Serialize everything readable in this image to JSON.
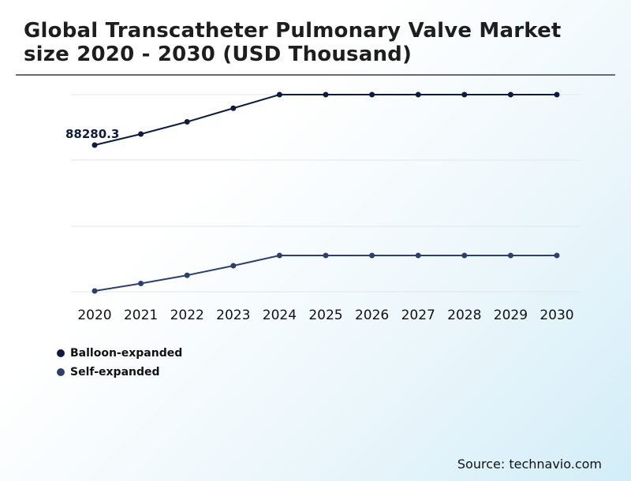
{
  "title": "Global Transcatheter Pulmonary Valve Market size 2020 - 2030 (USD Thousand)",
  "source": "Source: technavio.com",
  "colors": {
    "balloon": "#0d1b3e",
    "self": "#2d3f6b",
    "grid": "#e3e6ea"
  },
  "chart_data": {
    "type": "line",
    "title": "Global Transcatheter Pulmonary Valve Market size 2020 - 2030 (USD Thousand)",
    "categories": [
      "2020",
      "2021",
      "2022",
      "2023",
      "2024",
      "2025",
      "2026",
      "2027",
      "2028",
      "2029",
      "2030"
    ],
    "series": [
      {
        "name": "Balloon-expanded",
        "color_key": "balloon",
        "values": [
          88280.3,
          96000,
          104500,
          114000,
          123500,
          123500,
          123500,
          123500,
          123500,
          123500,
          123500
        ],
        "data_label": {
          "index": 0,
          "text": "88280.3"
        }
      },
      {
        "name": "Self-expanded",
        "color_key": "self",
        "values": [
          0,
          5500,
          11500,
          18500,
          26000,
          26000,
          26000,
          26000,
          26000,
          26000,
          26000
        ]
      }
    ],
    "ylim": [
      0,
      123500
    ],
    "gridlines": 4,
    "xlabel": "",
    "ylabel": "",
    "legend": "bottom-left"
  }
}
